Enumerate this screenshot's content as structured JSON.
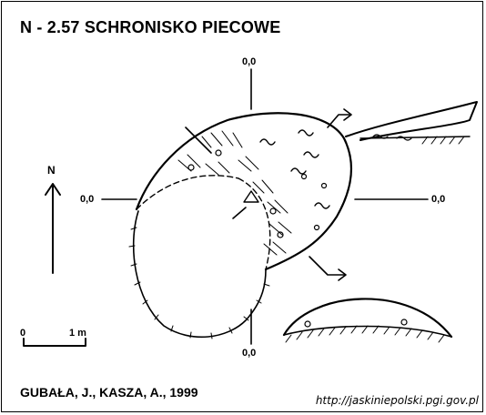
{
  "title": "N - 2.57  SCHRONISKO PIECOWE",
  "coordinates": {
    "top": "0,0",
    "left": "0,0",
    "right": "0,0",
    "bottom": "0,0"
  },
  "north_label": "N",
  "scale": {
    "start": "0",
    "end": "1 m"
  },
  "authors": "GUBAŁA, J., KASZA, A., 1999",
  "source_url": "http://jaskiniepolski.pgi.gov.pl",
  "colors": {
    "ink": "#000000",
    "background": "#ffffff"
  }
}
